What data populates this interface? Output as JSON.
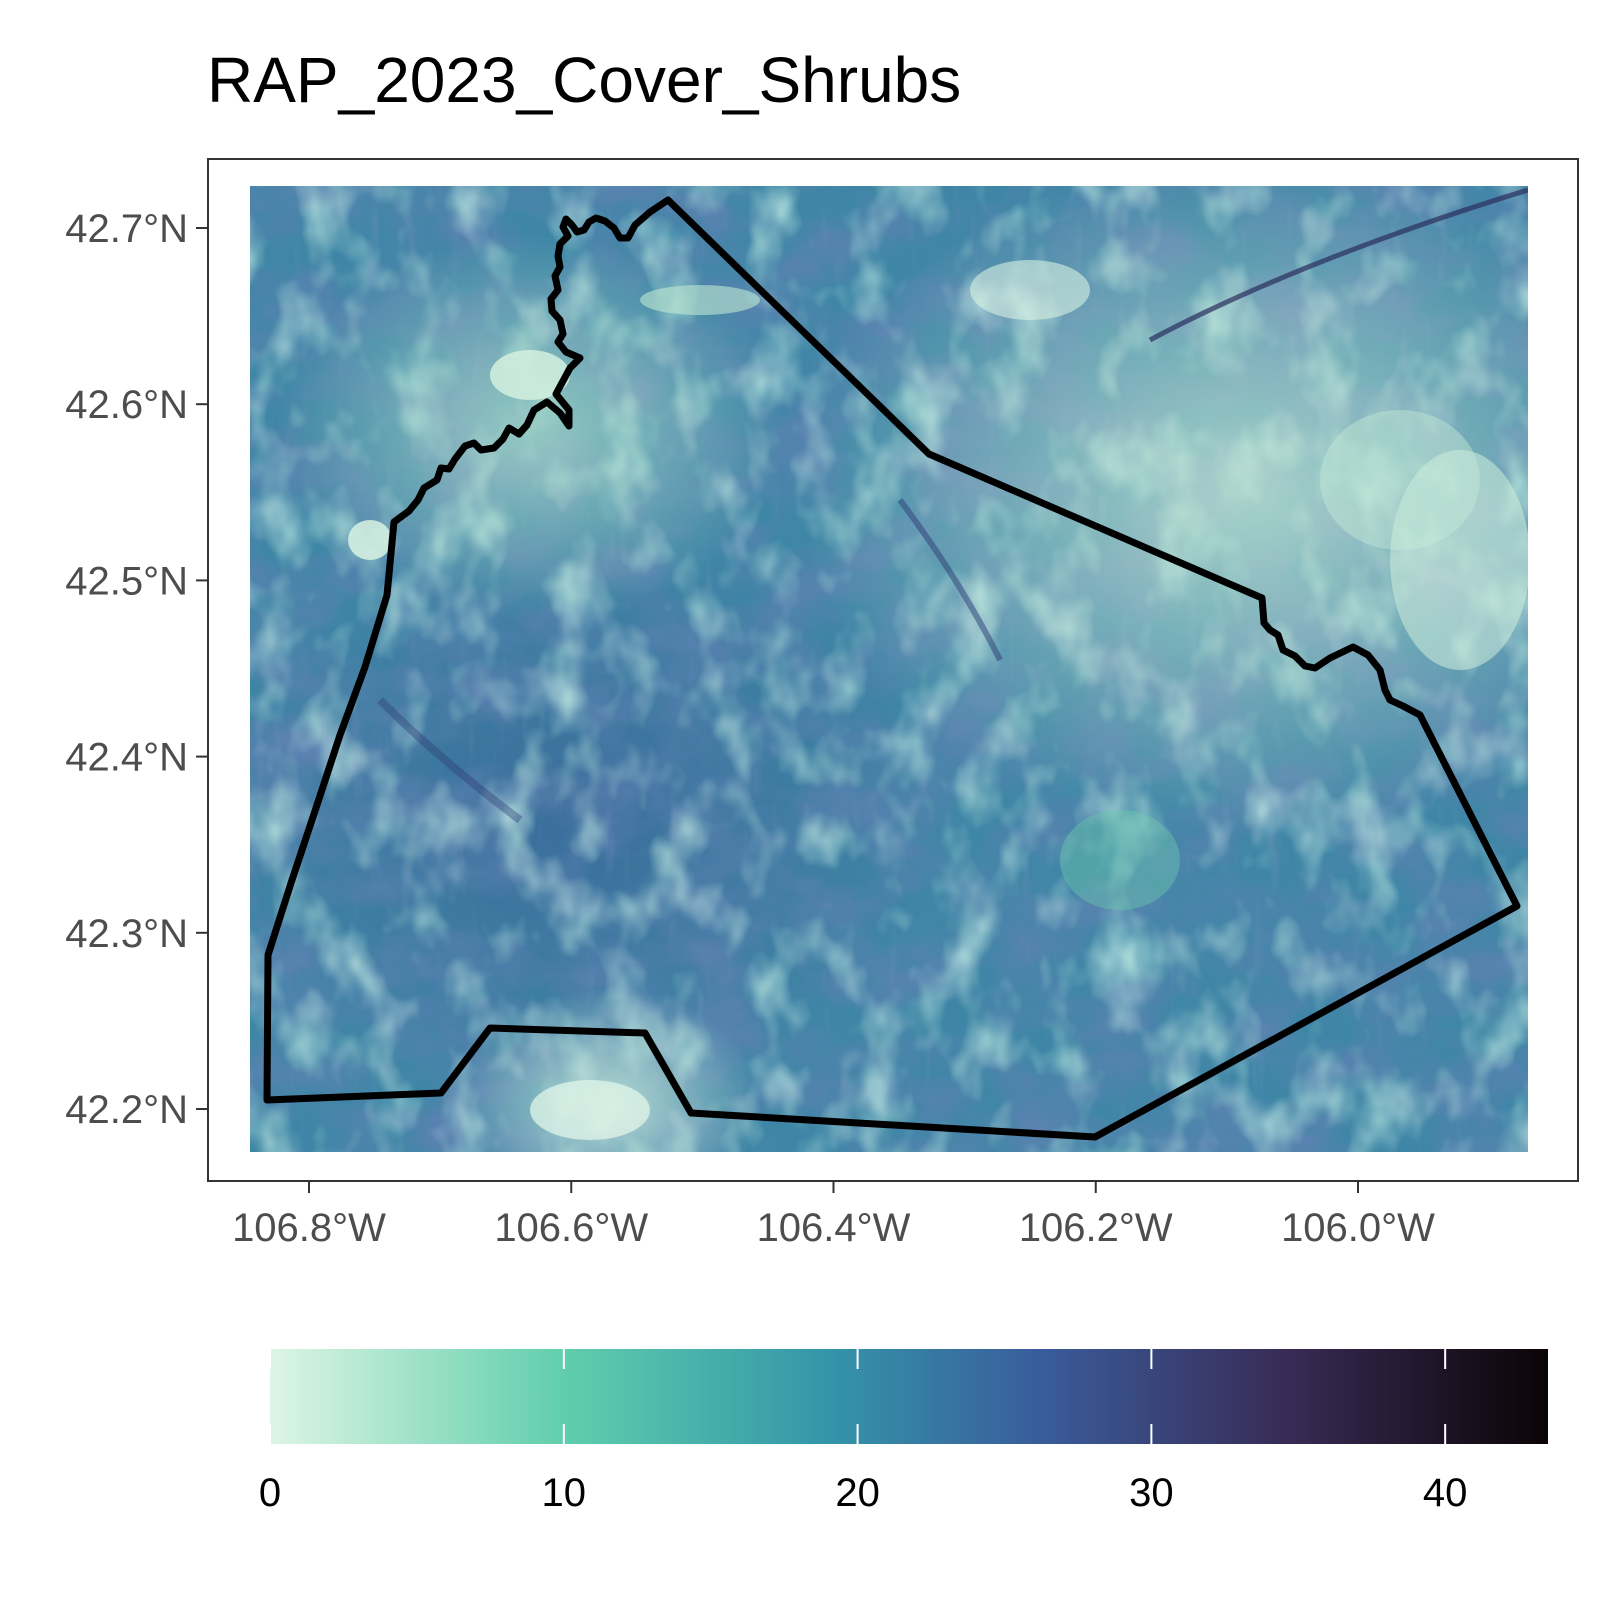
{
  "map": {
    "title": "RAP_2023_Cover_Shrubs",
    "x_axis": {
      "ticks": [
        {
          "value": -106.8,
          "label": "106.8°W"
        },
        {
          "value": -106.6,
          "label": "106.6°W"
        },
        {
          "value": -106.4,
          "label": "106.4°W"
        },
        {
          "value": -106.2,
          "label": "106.2°W"
        },
        {
          "value": -106.0,
          "label": "106.0°W"
        }
      ]
    },
    "y_axis": {
      "ticks": [
        {
          "value": 42.7,
          "label": "42.7°N"
        },
        {
          "value": 42.6,
          "label": "42.6°N"
        },
        {
          "value": 42.5,
          "label": "42.5°N"
        },
        {
          "value": 42.4,
          "label": "42.4°N"
        },
        {
          "value": 42.3,
          "label": "42.3°N"
        },
        {
          "value": 42.2,
          "label": "42.2°N"
        }
      ]
    },
    "boundary_color": "#000000",
    "raster_palette": [
      "#def5e5",
      "#60ceac",
      "#3497a9",
      "#395d9c",
      "#382a54",
      "#0b0405"
    ]
  },
  "legend": {
    "ticks": [
      {
        "value": 0,
        "label": "0"
      },
      {
        "value": 10,
        "label": "10"
      },
      {
        "value": 20,
        "label": "20"
      },
      {
        "value": 30,
        "label": "30"
      },
      {
        "value": 40,
        "label": "40"
      }
    ],
    "range": [
      0,
      43.5
    ],
    "colors": [
      "#def5e5",
      "#60ceac",
      "#3497a9",
      "#395d9c",
      "#382a54",
      "#0b0405"
    ]
  }
}
